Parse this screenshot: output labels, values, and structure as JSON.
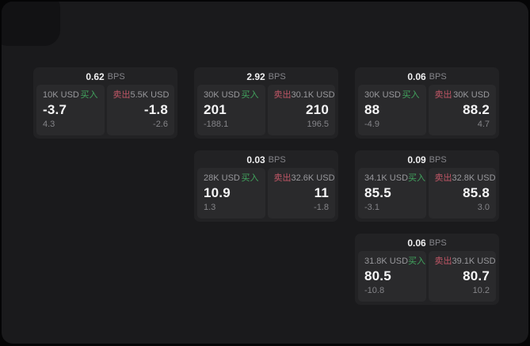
{
  "labels": {
    "bps_unit": "BPS",
    "buy": "买入",
    "sell": "卖出"
  },
  "colors": {
    "buy_green": "#41a45e",
    "sell_red": "#c05666",
    "surface_bg": "#1a1a1c",
    "card_bg": "#222224",
    "panel_bg": "#2a2a2c",
    "text_primary": "#f5f5f6",
    "text_muted": "#98989c"
  },
  "cards": [
    {
      "bps": "0.62",
      "grid": {
        "row": 0,
        "col": 0
      },
      "buy": {
        "notional": "10K USD",
        "price": "-3.7",
        "change": "4.3"
      },
      "sell": {
        "notional": "5.5K USD",
        "price": "-1.8",
        "change": "-2.6"
      }
    },
    {
      "bps": "2.92",
      "grid": {
        "row": 0,
        "col": 1
      },
      "buy": {
        "notional": "30K USD",
        "price": "201",
        "change": "-188.1"
      },
      "sell": {
        "notional": "30.1K USD",
        "price": "210",
        "change": "196.5"
      }
    },
    {
      "bps": "0.06",
      "grid": {
        "row": 0,
        "col": 2
      },
      "buy": {
        "notional": "30K USD",
        "price": "88",
        "change": "-4.9"
      },
      "sell": {
        "notional": "30K USD",
        "price": "88.2",
        "change": "4.7"
      }
    },
    {
      "bps": "0.03",
      "grid": {
        "row": 1,
        "col": 1
      },
      "buy": {
        "notional": "28K USD",
        "price": "10.9",
        "change": "1.3"
      },
      "sell": {
        "notional": "32.6K USD",
        "price": "11",
        "change": "-1.8"
      }
    },
    {
      "bps": "0.09",
      "grid": {
        "row": 1,
        "col": 2
      },
      "buy": {
        "notional": "34.1K USD",
        "price": "85.5",
        "change": "-3.1"
      },
      "sell": {
        "notional": "32.8K USD",
        "price": "85.8",
        "change": "3.0"
      }
    },
    {
      "bps": "0.06",
      "grid": {
        "row": 2,
        "col": 2
      },
      "buy": {
        "notional": "31.8K USD",
        "price": "80.5",
        "change": "-10.8"
      },
      "sell": {
        "notional": "39.1K USD",
        "price": "80.7",
        "change": "10.2"
      }
    }
  ]
}
